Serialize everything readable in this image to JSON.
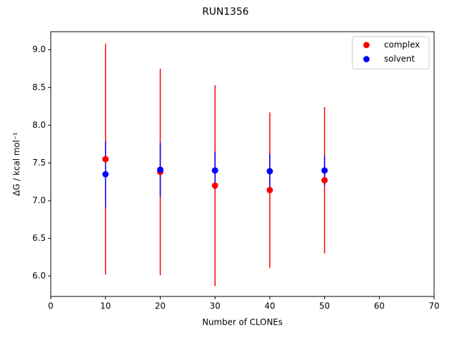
{
  "chart_data": {
    "type": "errorbar-scatter",
    "title": "RUN1356",
    "xlabel": "Number of CLONEs",
    "ylabel": "ΔG / kcal mol⁻¹",
    "x": [
      10,
      20,
      30,
      40,
      50
    ],
    "series": [
      {
        "name": "complex",
        "color": "#ff0000",
        "values": [
          7.55,
          7.38,
          7.2,
          7.14,
          7.27
        ],
        "errors": [
          1.53,
          1.37,
          1.33,
          1.03,
          0.97
        ]
      },
      {
        "name": "solvent",
        "color": "#0000ff",
        "values": [
          7.35,
          7.41,
          7.4,
          7.39,
          7.4
        ],
        "errors": [
          0.44,
          0.36,
          0.25,
          0.23,
          0.2
        ]
      }
    ],
    "xlim": [
      0,
      70
    ],
    "xticks": [
      0,
      10,
      20,
      30,
      40,
      50,
      60,
      70
    ],
    "ylim": [
      5.73,
      9.24
    ],
    "yticks": [
      {
        "value": 6,
        "label": "6.0"
      },
      {
        "value": 6.5,
        "label": "6.5"
      },
      {
        "value": 7,
        "label": "7.0"
      },
      {
        "value": 7.5,
        "label": "7.5"
      },
      {
        "value": 8,
        "label": "8.0"
      },
      {
        "value": 8.5,
        "label": "8.5"
      },
      {
        "value": 9,
        "label": "9.0"
      }
    ],
    "grid": false,
    "legend": "upper-right"
  }
}
